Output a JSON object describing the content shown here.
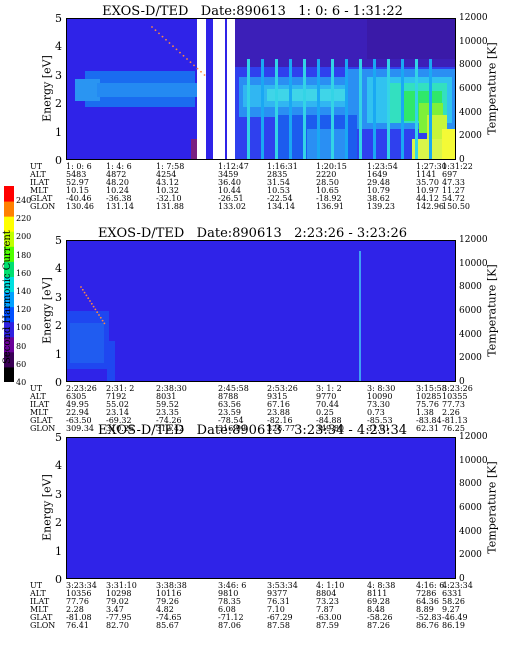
{
  "colorbar": {
    "title": "Second Harmonic Current",
    "ticks": [
      "40",
      "60",
      "80",
      "100",
      "120",
      "140",
      "160",
      "180",
      "200",
      "220",
      "240"
    ],
    "colors": [
      "#000000",
      "#3a0055",
      "#6a0099",
      "#3020e0",
      "#0050ff",
      "#00a0ff",
      "#00e0e0",
      "#00e070",
      "#50ff00",
      "#c0ff00",
      "#ffff00",
      "#ff8000",
      "#ff0000"
    ]
  },
  "axis_labels": {
    "left": "Energy [eV]",
    "right": "Temperature [K]"
  },
  "left_ticks": [
    "5",
    "4",
    "3",
    "2",
    "1",
    "0"
  ],
  "right_ticks": [
    "12000",
    "10000",
    "8000",
    "6000",
    "4000",
    "2000",
    "0"
  ],
  "ephem_labels": [
    "UT",
    "ALT",
    "ILAT",
    "MLT",
    "GLAT",
    "GLON"
  ],
  "panels": [
    {
      "title": "EXOS-D/TED   Date:890613   1: 0: 6 - 1:31:22",
      "columns": [
        [
          "1: 0: 6",
          "5483",
          "52.97",
          "10.15",
          "-40.46",
          "130.46"
        ],
        [
          "1: 4: 6",
          "4872",
          "48.20",
          "10.24",
          "-36.38",
          "131.14"
        ],
        [
          "1: 7:58",
          "4254",
          "43.12",
          "10.32",
          "-32.10",
          "131.88"
        ],
        [
          "1:12:47",
          "3459",
          "36.40",
          "10.44",
          "-26.51",
          "133.02"
        ],
        [
          "1:16:31",
          "2835",
          "31.54",
          "10.53",
          "-22.54",
          "134.14"
        ],
        [
          "1:20:15",
          "2220",
          "28.50",
          "10.65",
          "-18.92",
          "136.91"
        ],
        [
          "1:23:54",
          "1649",
          "29.48",
          "10.79",
          "38.62",
          "139.23"
        ],
        [
          "1:27:30",
          "1141",
          "35.70",
          "10.97",
          "44.12",
          "142.96"
        ],
        [
          "1:31:22",
          "697",
          "47.33",
          "11.27",
          "54.72",
          "150.50"
        ]
      ]
    },
    {
      "title": "EXOS-D/TED   Date:890613   2:23:26 - 3:23:26",
      "columns": [
        [
          "2:23:26",
          "6305",
          "49.95",
          "22.94",
          "-63.50",
          "309.34"
        ],
        [
          "2:31: 2",
          "7192",
          "55.02",
          "23.14",
          "-69.32",
          "310.25"
        ],
        [
          "2:38:30",
          "8031",
          "59.52",
          "23.35",
          "-74.26",
          "312.42"
        ],
        [
          "2:45:58",
          "8788",
          "63.56",
          "23.59",
          "-78.54",
          "316.99"
        ],
        [
          "2:53:26",
          "9315",
          "67.16",
          "23.88",
          "-82.16",
          "326.77"
        ],
        [
          "3: 1: 2",
          "9770",
          "70.44",
          "0.25",
          "-84.88",
          "349.80"
        ],
        [
          "3: 8:30",
          "10090",
          "73.30",
          "0.73",
          "-85.53",
          "31.01"
        ],
        [
          "3:15:58",
          "10285",
          "75.76",
          "1.38",
          "-83.84",
          "62.31"
        ],
        [
          "3:23:26",
          "10355",
          "77.73",
          "2.26",
          "-81.13",
          "76.25"
        ]
      ]
    },
    {
      "title": "EXOS-D/TED   Date:890613   3:23:34 - 4:23:34",
      "columns": [
        [
          "3:23:34",
          "10356",
          "77.76",
          "2.28",
          "-81.08",
          "76.41"
        ],
        [
          "3:31:10",
          "10298",
          "79.02",
          "3.47",
          "-77.95",
          "82.70"
        ],
        [
          "3:38:38",
          "10116",
          "79.26",
          "4.82",
          "-74.65",
          "85.67"
        ],
        [
          "3:46: 6",
          "9810",
          "78.35",
          "6.08",
          "-71.12",
          "87.06"
        ],
        [
          "3:53:34",
          "9377",
          "76.31",
          "7.10",
          "-67.29",
          "87.58"
        ],
        [
          "4: 1:10",
          "8804",
          "73.23",
          "7.87",
          "-63.00",
          "87.59"
        ],
        [
          "4: 8:38",
          "8111",
          "69.28",
          "8.48",
          "-58.26",
          "87.26"
        ],
        [
          "4:16: 6",
          "7286",
          "64.36",
          "8.89",
          "-52.83",
          "86.76"
        ],
        [
          "4:23:34",
          "6331",
          "58.26",
          "9.27",
          "-46.49",
          "86.19"
        ]
      ]
    }
  ],
  "chart_data": [
    {
      "type": "heatmap",
      "title": "EXOS-D/TED   Date:890613   1: 0: 6 - 1:31:22",
      "xlabel": "",
      "ylabel": "Energy [eV]",
      "y2label": "Temperature [K]",
      "ylim": [
        0,
        5
      ],
      "y2lim": [
        0,
        12000
      ],
      "x": [
        "1: 0: 6",
        "1: 4: 6",
        "1: 7:58",
        "1:12:47",
        "1:16:31",
        "1:20:15",
        "1:23:54",
        "1:27:30",
        "1:31:22"
      ]
    },
    {
      "type": "heatmap",
      "title": "EXOS-D/TED   Date:890613   2:23:26 - 3:23:26",
      "xlabel": "",
      "ylabel": "Energy [eV]",
      "y2label": "Temperature [K]",
      "ylim": [
        0,
        5
      ],
      "y2lim": [
        0,
        12000
      ],
      "x": [
        "2:23:26",
        "2:31: 2",
        "2:38:30",
        "2:45:58",
        "2:53:26",
        "3: 1: 2",
        "3: 8:30",
        "3:15:58",
        "3:23:26"
      ]
    },
    {
      "type": "heatmap",
      "title": "EXOS-D/TED   Date:890613   3:23:34 - 4:23:34",
      "xlabel": "",
      "ylabel": "Energy [eV]",
      "y2label": "Temperature [K]",
      "ylim": [
        0,
        5
      ],
      "y2lim": [
        0,
        12000
      ],
      "x": [
        "3:23:34",
        "3:31:10",
        "3:38:38",
        "3:46: 6",
        "3:53:34",
        "4: 1:10",
        "4: 8:38",
        "4:16: 6",
        "4:23:34"
      ]
    }
  ]
}
